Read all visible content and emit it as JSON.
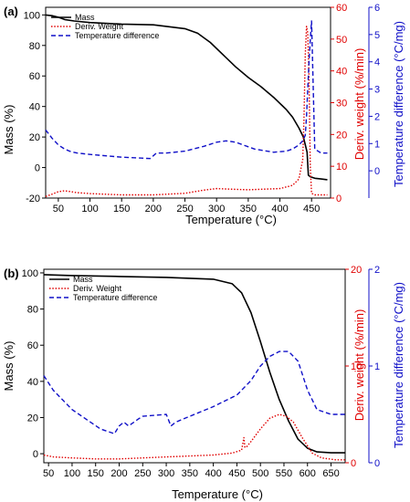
{
  "chart_data": [
    {
      "panel_label": "(a)",
      "type": "line",
      "xlabel": "Temperature (°C)",
      "ylabel_left": "Mass (%)",
      "ylabel_right1": "Deriv. weight (%/min)",
      "ylabel_right2": "Temperature difference (°C/mg)",
      "xlim": [
        30,
        480
      ],
      "ylim_left": [
        -20,
        105
      ],
      "ylim_right1": [
        0,
        60
      ],
      "ylim_right2": [
        -1,
        6
      ],
      "xticks": [
        50,
        100,
        150,
        200,
        250,
        300,
        350,
        400,
        450
      ],
      "yticks_left": [
        -20,
        0,
        20,
        40,
        60,
        80,
        100
      ],
      "yticks_right1": [
        0,
        10,
        20,
        30,
        40,
        50,
        60
      ],
      "yticks_right2": [
        0,
        1,
        2,
        3,
        4,
        5,
        6
      ],
      "legend": [
        "Mass",
        "Deriv. Weight",
        "Temperature difference"
      ],
      "legend_position": "upper-left",
      "series": [
        {
          "name": "Mass",
          "axis": "left",
          "color": "#000000",
          "style": "solid",
          "x": [
            30,
            40,
            50,
            60,
            75,
            100,
            150,
            200,
            250,
            270,
            290,
            310,
            330,
            350,
            370,
            390,
            410,
            420,
            430,
            437,
            440,
            443,
            445,
            448,
            455,
            465,
            475
          ],
          "y": [
            100,
            99.5,
            98.5,
            97,
            96,
            95,
            94,
            93.5,
            91,
            88,
            82,
            74,
            66,
            59,
            53,
            46,
            38,
            33,
            26,
            20,
            15,
            10,
            -5,
            -6,
            -7,
            -7.5,
            -8
          ]
        },
        {
          "name": "Deriv. Weight",
          "axis": "right1",
          "color": "#e00000",
          "style": "dotted",
          "x": [
            30,
            40,
            50,
            60,
            70,
            80,
            100,
            150,
            200,
            250,
            280,
            300,
            320,
            350,
            400,
            420,
            430,
            436,
            438,
            440,
            442,
            444,
            446,
            448,
            450,
            455,
            465,
            475
          ],
          "y": [
            0.5,
            1.2,
            2,
            2.3,
            2,
            1.7,
            1.4,
            1,
            1,
            1.5,
            2.5,
            3,
            2.8,
            2.6,
            3,
            4,
            6,
            12,
            25,
            45,
            54,
            52,
            38,
            10,
            1.5,
            1,
            1,
            1
          ]
        },
        {
          "name": "Temperature difference",
          "axis": "right2",
          "color": "#1010c8",
          "style": "dashed",
          "x": [
            30,
            40,
            50,
            60,
            70,
            80,
            100,
            150,
            195,
            200,
            205,
            220,
            250,
            280,
            300,
            315,
            330,
            360,
            390,
            410,
            420,
            430,
            436,
            440,
            442,
            444,
            446,
            448,
            450,
            455,
            465,
            475
          ],
          "y": [
            1.5,
            1.2,
            0.95,
            0.8,
            0.7,
            0.65,
            0.6,
            0.5,
            0.45,
            0.55,
            0.65,
            0.65,
            0.72,
            0.9,
            1.05,
            1.1,
            1.05,
            0.8,
            0.68,
            0.72,
            0.8,
            0.95,
            1.1,
            1.3,
            2.0,
            3.0,
            4.0,
            4.8,
            5.5,
            0.8,
            0.65,
            0.65
          ]
        }
      ]
    },
    {
      "panel_label": "(b)",
      "type": "line",
      "xlabel": "Temperature (°C)",
      "ylabel_left": "Mass (%)",
      "ylabel_right1": "Deriv. weight (%/min)",
      "ylabel_right2": "Temperature difference (°C/mg)",
      "xlim": [
        40,
        680
      ],
      "ylim_left": [
        -5,
        102
      ],
      "ylim_right1": [
        0,
        20
      ],
      "ylim_right2": [
        0,
        2
      ],
      "xticks": [
        50,
        100,
        150,
        200,
        250,
        300,
        350,
        400,
        450,
        500,
        550,
        600,
        650
      ],
      "yticks_left": [
        0,
        20,
        40,
        60,
        80,
        100
      ],
      "yticks_right1": [
        0,
        10,
        20
      ],
      "yticks_right2": [
        0,
        1,
        2
      ],
      "legend": [
        "Mass",
        "Deriv. Weight",
        "Temperature difference"
      ],
      "legend_position": "upper-left",
      "series": [
        {
          "name": "Mass",
          "axis": "left",
          "color": "#000000",
          "style": "solid",
          "x": [
            40,
            100,
            200,
            300,
            400,
            440,
            460,
            480,
            500,
            520,
            540,
            560,
            580,
            600,
            620,
            650,
            680
          ],
          "y": [
            99,
            98.5,
            98,
            97.5,
            96.5,
            94,
            89,
            78,
            62,
            45,
            30,
            18,
            8,
            3,
            1,
            0.5,
            0.5
          ]
        },
        {
          "name": "Deriv. Weight",
          "axis": "right1",
          "color": "#e00000",
          "style": "dotted",
          "x": [
            40,
            60,
            100,
            150,
            200,
            250,
            300,
            350,
            400,
            440,
            460,
            465,
            467,
            470,
            480,
            500,
            520,
            540,
            555,
            570,
            590,
            610,
            630,
            660,
            680
          ],
          "y": [
            0.8,
            0.6,
            0.5,
            0.4,
            0.4,
            0.5,
            0.6,
            0.7,
            0.8,
            1.0,
            1.3,
            2.6,
            1.6,
            1.6,
            2.2,
            3.5,
            4.6,
            5.0,
            4.8,
            4.2,
            2.5,
            1.0,
            0.5,
            0.3,
            0.3
          ]
        },
        {
          "name": "Temperature difference",
          "axis": "right2",
          "color": "#1010c8",
          "style": "dashed",
          "x": [
            40,
            60,
            80,
            100,
            130,
            160,
            190,
            200,
            210,
            220,
            240,
            250,
            300,
            310,
            320,
            350,
            400,
            450,
            480,
            500,
            520,
            540,
            560,
            580,
            600,
            620,
            650,
            680
          ],
          "y": [
            0.9,
            0.75,
            0.65,
            0.55,
            0.45,
            0.35,
            0.3,
            0.38,
            0.42,
            0.38,
            0.45,
            0.48,
            0.5,
            0.38,
            0.42,
            0.48,
            0.58,
            0.7,
            0.85,
            1.0,
            1.1,
            1.15,
            1.15,
            1.05,
            0.75,
            0.55,
            0.5,
            0.5
          ]
        }
      ]
    }
  ]
}
